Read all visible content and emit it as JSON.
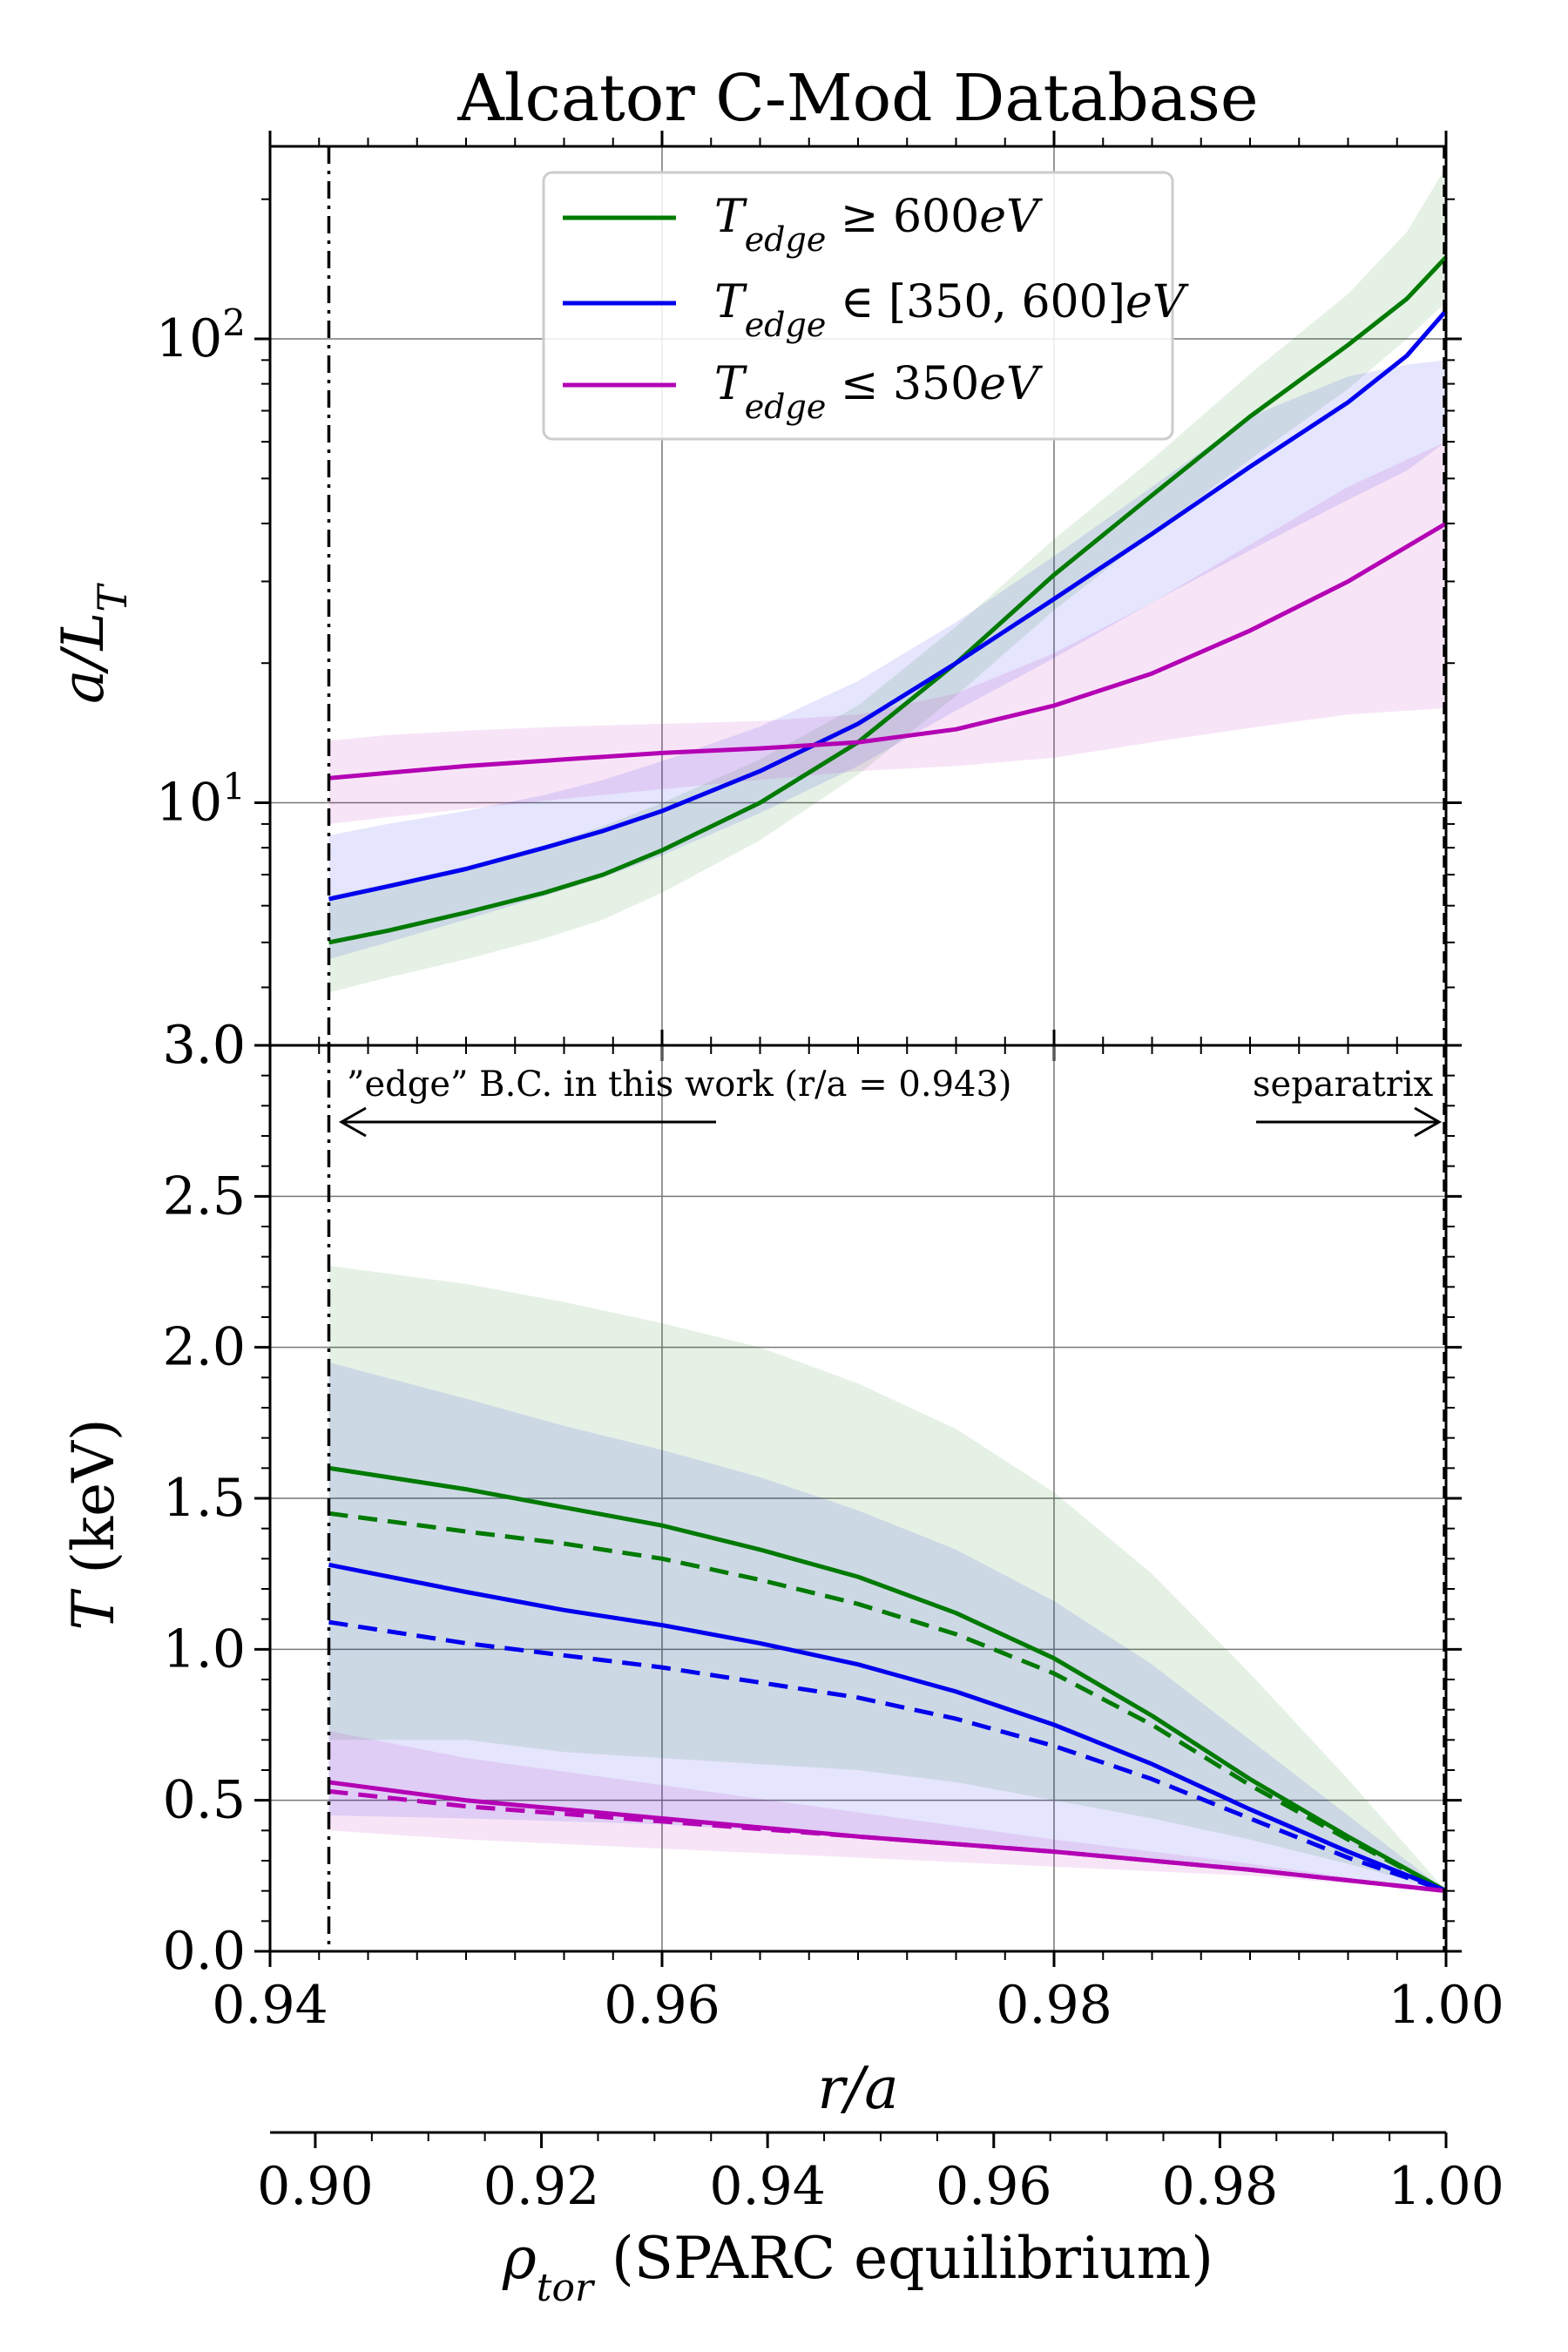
{
  "chart_data": {
    "type": "line",
    "title": "Alcator C-Mod Database",
    "xlabel": "r/a",
    "xlim": [
      0.94,
      1.0
    ],
    "x_ticks": [
      0.94,
      0.96,
      0.98,
      1.0
    ],
    "x_tick_labels": [
      "0.94",
      "0.96",
      "0.98",
      "1.00"
    ],
    "secondary_x_axis": {
      "label": "ρ_tor (SPARC equilibrium)",
      "lim": [
        0.896,
        1.0
      ],
      "ticks": [
        0.9,
        0.92,
        0.94,
        0.96,
        0.98,
        1.0
      ],
      "tick_labels": [
        "0.90",
        "0.92",
        "0.94",
        "0.96",
        "0.98",
        "1.00"
      ]
    },
    "grid": true,
    "vertical_lines": [
      0.943,
      1.0
    ],
    "annotations": {
      "edge_bc": "”edge” B.C. in this work (r/a = 0.943)",
      "separatrix": "separatrix"
    },
    "legend": {
      "placement": "top-center",
      "entries": [
        "T_edge ≥ 600eV",
        "T_edge ∈ [350, 600]eV",
        "T_edge ≤ 350eV"
      ]
    },
    "colors": {
      "high": "#007a00",
      "mid": "#0000ee",
      "low": "#b400b4"
    },
    "panels": [
      {
        "name": "gradient",
        "ylabel": "a/L_T",
        "yscale": "log",
        "ylim": [
          3.0,
          260
        ],
        "y_ticks": [
          3.0,
          10,
          100
        ],
        "y_tick_labels": [
          "3.0",
          "10^1",
          "10^2"
        ],
        "series": [
          {
            "name": "T_edge ≥ 600eV",
            "color_key": "high",
            "x": [
              0.943,
              0.946,
              0.95,
              0.954,
              0.957,
              0.96,
              0.965,
              0.97,
              0.975,
              0.98,
              0.985,
              0.99,
              0.995,
              0.998,
              1.0
            ],
            "y": [
              5.0,
              5.3,
              5.8,
              6.4,
              7.0,
              7.9,
              10.0,
              13.5,
              20.0,
              31.0,
              46.0,
              68.0,
              97.0,
              122.0,
              150.0
            ],
            "band_low": [
              3.9,
              4.2,
              4.6,
              5.1,
              5.6,
              6.4,
              8.3,
              11.5,
              17.0,
              26.0,
              38.0,
              55.0,
              78.0,
              100.0,
              120.0
            ],
            "band_high": [
              6.3,
              6.7,
              7.3,
              8.1,
              8.9,
              10.0,
              12.4,
              16.2,
              24.0,
              37.0,
              55.0,
              84.0,
              125.0,
              170.0,
              235.0
            ]
          },
          {
            "name": "T_edge ∈ [350, 600]eV",
            "color_key": "mid",
            "x": [
              0.943,
              0.946,
              0.95,
              0.954,
              0.957,
              0.96,
              0.965,
              0.97,
              0.975,
              0.98,
              0.985,
              0.99,
              0.995,
              0.998,
              1.0
            ],
            "y": [
              6.2,
              6.6,
              7.2,
              8.0,
              8.7,
              9.6,
              11.7,
              14.8,
              20.0,
              27.5,
              38.0,
              53.0,
              73.0,
              92.0,
              115.0
            ],
            "band_low": [
              4.6,
              5.0,
              5.6,
              6.3,
              6.9,
              7.7,
              9.5,
              12.0,
              15.8,
              20.5,
              27.0,
              35.0,
              45.0,
              52.0,
              60.0
            ],
            "band_high": [
              8.5,
              9.0,
              9.6,
              10.4,
              11.2,
              12.3,
              14.6,
              18.3,
              24.5,
              34.0,
              48.0,
              68.0,
              83.0,
              88.0,
              90.0
            ]
          },
          {
            "name": "T_edge ≤ 350eV",
            "color_key": "low",
            "x": [
              0.943,
              0.946,
              0.95,
              0.955,
              0.96,
              0.965,
              0.97,
              0.975,
              0.98,
              0.985,
              0.99,
              0.995,
              1.0
            ],
            "y": [
              11.3,
              11.6,
              12.0,
              12.4,
              12.8,
              13.1,
              13.5,
              14.4,
              16.2,
              19.0,
              23.5,
              30.0,
              40.0
            ],
            "band_low": [
              9.0,
              9.3,
              9.7,
              10.2,
              10.7,
              11.2,
              11.7,
              12.0,
              12.5,
              13.5,
              14.5,
              15.5,
              16.0
            ],
            "band_high": [
              13.6,
              14.0,
              14.3,
              14.6,
              14.8,
              15.0,
              15.5,
              17.2,
              21.0,
              27.0,
              36.0,
              48.0,
              60.0
            ]
          }
        ]
      },
      {
        "name": "temperature",
        "ylabel": "T (keV)",
        "yscale": "linear",
        "ylim": [
          0.0,
          3.0
        ],
        "y_ticks": [
          0.0,
          0.5,
          1.0,
          1.5,
          2.0,
          2.5,
          3.0
        ],
        "y_tick_labels": [
          "0.0",
          "0.5",
          "1.0",
          "1.5",
          "2.0",
          "2.5",
          "3.0"
        ],
        "series": [
          {
            "name": "T_edge ≥ 600eV",
            "color_key": "high",
            "style": "solid",
            "x": [
              0.943,
              0.95,
              0.955,
              0.96,
              0.965,
              0.97,
              0.975,
              0.98,
              0.985,
              0.99,
              0.995,
              1.0
            ],
            "y": [
              1.6,
              1.53,
              1.47,
              1.41,
              1.33,
              1.24,
              1.12,
              0.97,
              0.78,
              0.57,
              0.38,
              0.2
            ],
            "band_low": [
              0.7,
              0.7,
              0.66,
              0.64,
              0.62,
              0.6,
              0.56,
              0.5,
              0.44,
              0.37,
              0.29,
              0.2
            ],
            "band_high": [
              2.27,
              2.21,
              2.15,
              2.08,
              2.0,
              1.88,
              1.73,
              1.52,
              1.25,
              0.92,
              0.57,
              0.2
            ]
          },
          {
            "name": "T_edge ≥ 600eV (dashed)",
            "color_key": "high",
            "style": "dashed",
            "x": [
              0.943,
              0.95,
              0.955,
              0.96,
              0.965,
              0.97,
              0.975,
              0.98,
              0.985,
              0.99,
              0.995,
              1.0
            ],
            "y": [
              1.45,
              1.39,
              1.35,
              1.3,
              1.23,
              1.15,
              1.05,
              0.92,
              0.75,
              0.55,
              0.37,
              0.2
            ]
          },
          {
            "name": "T_edge ∈ [350, 600]eV",
            "color_key": "mid",
            "style": "solid",
            "x": [
              0.943,
              0.95,
              0.955,
              0.96,
              0.965,
              0.97,
              0.975,
              0.98,
              0.985,
              0.99,
              0.995,
              1.0
            ],
            "y": [
              1.28,
              1.19,
              1.13,
              1.08,
              1.02,
              0.95,
              0.86,
              0.75,
              0.62,
              0.47,
              0.33,
              0.2
            ],
            "band_low": [
              0.45,
              0.44,
              0.43,
              0.42,
              0.4,
              0.38,
              0.36,
              0.33,
              0.3,
              0.27,
              0.23,
              0.2
            ],
            "band_high": [
              1.95,
              1.83,
              1.74,
              1.66,
              1.57,
              1.46,
              1.33,
              1.16,
              0.95,
              0.7,
              0.45,
              0.2
            ]
          },
          {
            "name": "T_edge ∈ [350, 600]eV (dashed)",
            "color_key": "mid",
            "style": "dashed",
            "x": [
              0.943,
              0.95,
              0.955,
              0.96,
              0.965,
              0.97,
              0.975,
              0.98,
              0.985,
              0.99,
              0.995,
              1.0
            ],
            "y": [
              1.09,
              1.02,
              0.98,
              0.94,
              0.89,
              0.84,
              0.77,
              0.68,
              0.57,
              0.44,
              0.31,
              0.2
            ]
          },
          {
            "name": "T_edge ≤ 350eV",
            "color_key": "low",
            "style": "solid",
            "x": [
              0.943,
              0.95,
              0.96,
              0.97,
              0.98,
              0.99,
              1.0
            ],
            "y": [
              0.56,
              0.5,
              0.44,
              0.38,
              0.33,
              0.27,
              0.2
            ],
            "band_low": [
              0.4,
              0.37,
              0.34,
              0.31,
              0.28,
              0.25,
              0.2
            ],
            "band_high": [
              0.73,
              0.64,
              0.55,
              0.46,
              0.37,
              0.29,
              0.2
            ]
          },
          {
            "name": "T_edge ≤ 350eV (dashed)",
            "color_key": "low",
            "style": "dashed",
            "x": [
              0.943,
              0.95,
              0.96,
              0.97,
              0.98,
              0.99,
              1.0
            ],
            "y": [
              0.53,
              0.48,
              0.43,
              0.38,
              0.33,
              0.27,
              0.2
            ]
          }
        ]
      }
    ]
  }
}
